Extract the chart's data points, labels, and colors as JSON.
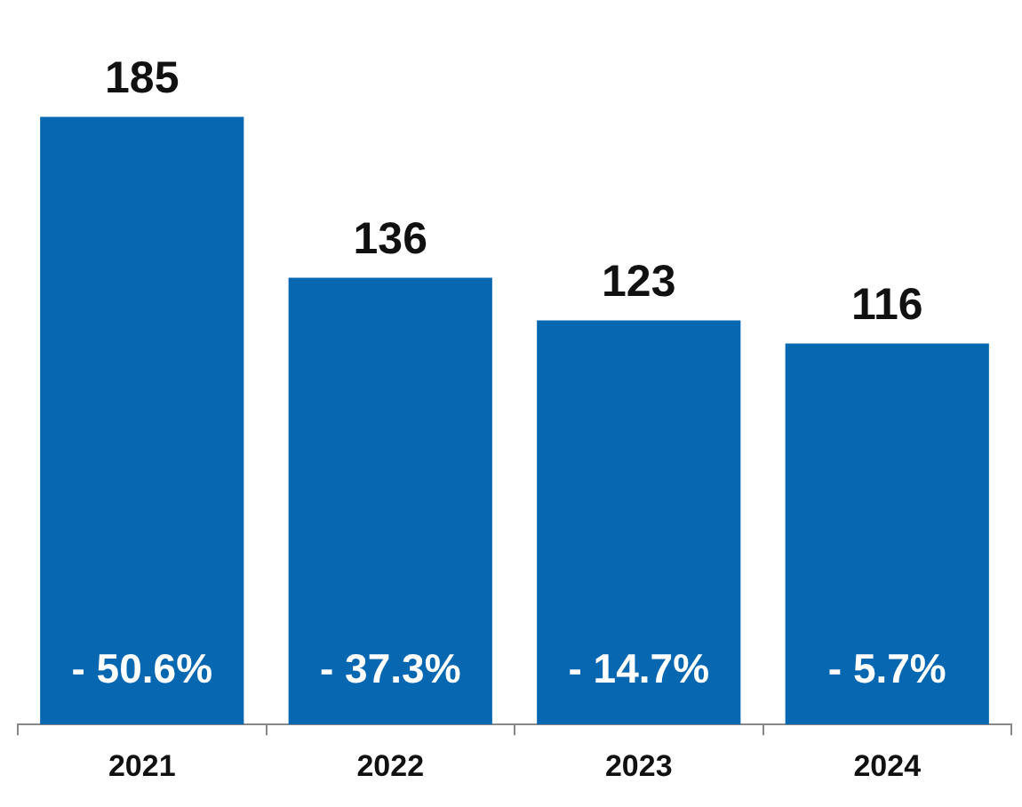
{
  "chart_data": {
    "type": "bar",
    "categories": [
      "2021",
      "2022",
      "2023",
      "2024"
    ],
    "values": [
      185,
      136,
      123,
      116
    ],
    "color": "#0767b1",
    "data_labels": true,
    "grid": false,
    "legend": false,
    "tick_labels": "x",
    "annotations": [
      "- 50.6%",
      "- 37.3%",
      "- 14.7%",
      "- 5.7%"
    ]
  }
}
